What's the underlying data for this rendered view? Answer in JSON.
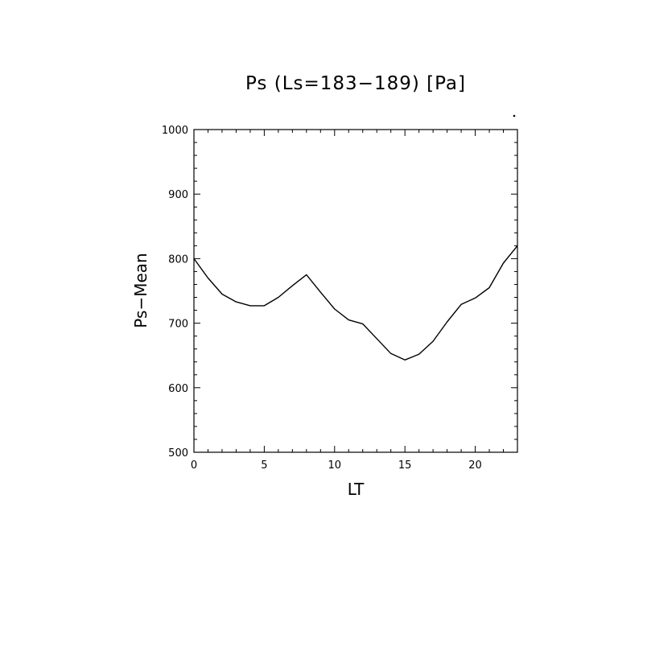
{
  "chart_data": {
    "type": "line",
    "title": "Ps (Ls=183−189) [Pa]",
    "xlabel": "LT",
    "ylabel": "Ps−Mean",
    "xlim": [
      0,
      23
    ],
    "ylim": [
      500,
      1000
    ],
    "x_ticks": [
      0,
      5,
      10,
      15,
      20
    ],
    "x_tick_labels": [
      "0",
      "5",
      "10",
      "15",
      "20"
    ],
    "y_ticks": [
      500,
      600,
      700,
      800,
      900,
      1000
    ],
    "y_tick_labels": [
      "500",
      "600",
      "700",
      "800",
      "900",
      "1000"
    ],
    "grid": false,
    "series": [
      {
        "x": [
          0,
          1,
          2,
          3,
          4,
          5,
          6,
          7,
          8,
          9,
          10,
          11,
          12,
          13,
          14,
          15,
          16,
          17,
          18,
          19,
          20,
          21,
          22,
          23
        ],
        "values": [
          800,
          770,
          745,
          733,
          727,
          727,
          740,
          758,
          775,
          748,
          722,
          705,
          699,
          676,
          653,
          643,
          652,
          672,
          702,
          729,
          739,
          755,
          793,
          820
        ],
        "color": "#000000"
      }
    ]
  }
}
